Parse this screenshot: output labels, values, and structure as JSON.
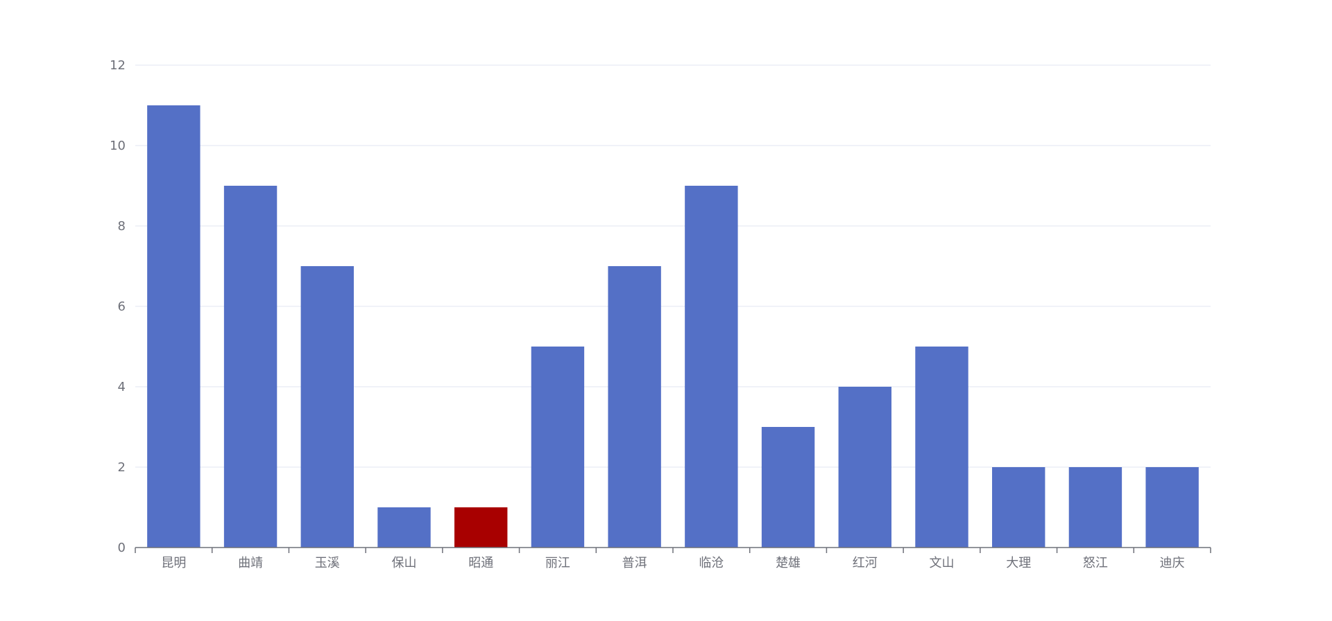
{
  "chart_data": {
    "type": "bar",
    "title": "",
    "xlabel": "",
    "ylabel": "",
    "categories": [
      "昆明",
      "曲靖",
      "玉溪",
      "保山",
      "昭通",
      "丽江",
      "普洱",
      "临沧",
      "楚雄",
      "红河",
      "文山",
      "大理",
      "怒江",
      "迪庆"
    ],
    "values": [
      11,
      9,
      7,
      1,
      1,
      5,
      7,
      9,
      3,
      4,
      5,
      2,
      2,
      2
    ],
    "ylim": [
      0,
      12
    ],
    "yticks": [
      0,
      2,
      4,
      6,
      8,
      10,
      12
    ],
    "grid": true,
    "highlight_category": "昭通",
    "colors": {
      "bar": "#5470c6",
      "highlight": "#a80000",
      "grid": "#e0e6f1",
      "axis": "#6e7079",
      "label": "#6e7079"
    }
  }
}
